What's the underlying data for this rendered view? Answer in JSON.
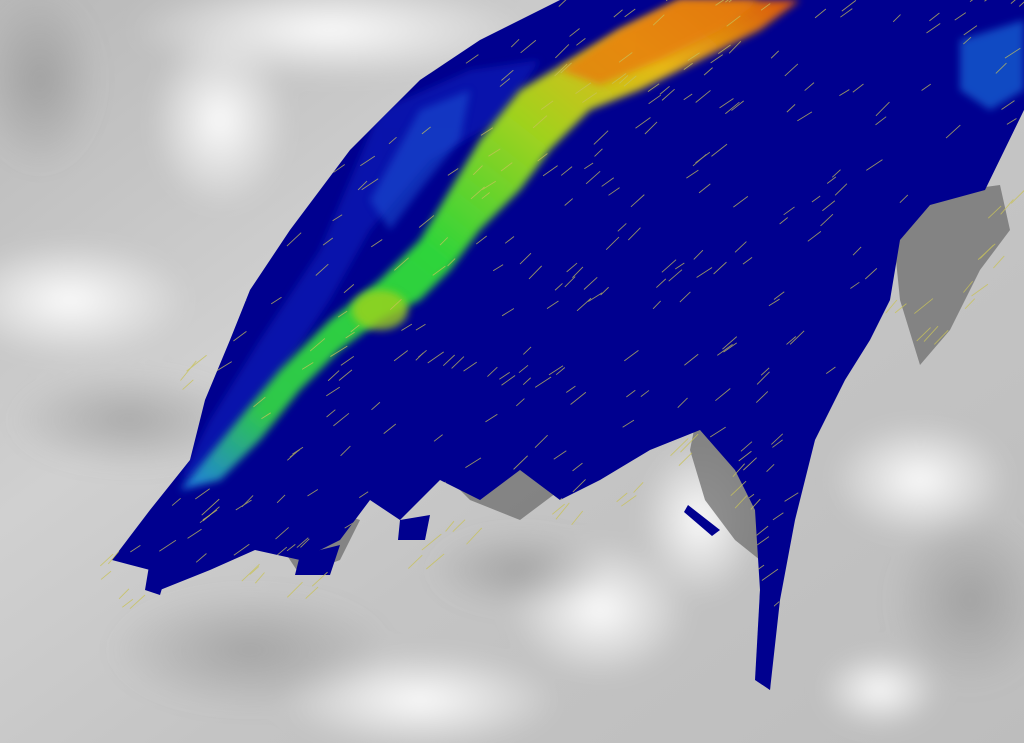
{
  "scene": {
    "terrain_color": "#d2d2d2",
    "shadow_color": "#6e6e6e",
    "vector_color": "#c8c25a",
    "colormap": [
      "#00008f",
      "#0021c8",
      "#1e7be6",
      "#18c878",
      "#2fd43a",
      "#9fd21f",
      "#e6b816",
      "#e67d0c",
      "#d9520a"
    ]
  }
}
